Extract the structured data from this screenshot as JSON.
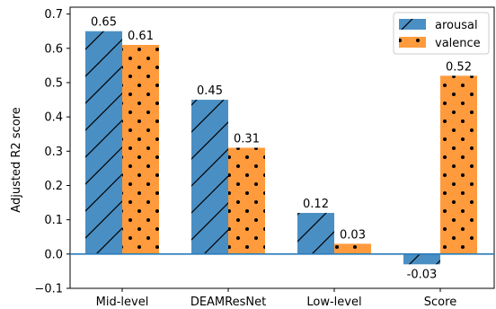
{
  "chart_data": {
    "type": "bar",
    "categories": [
      "Mid-level",
      "DEAMResNet",
      "Low-level",
      "Score"
    ],
    "series": [
      {
        "name": "arousal",
        "values": [
          0.65,
          0.45,
          0.12,
          -0.03
        ],
        "labels": [
          "0.65",
          "0.45",
          "0.12",
          "-0.03"
        ],
        "color": "#4a8fc4",
        "hatch": "diagonal"
      },
      {
        "name": "valence",
        "values": [
          0.61,
          0.31,
          0.03,
          0.52
        ],
        "labels": [
          "0.61",
          "0.31",
          "0.03",
          "0.52"
        ],
        "color": "#ff9b3d",
        "hatch": "dots"
      }
    ],
    "ylabel": "Adjusted R2 score",
    "xlabel": "",
    "ylim": [
      -0.1,
      0.72
    ],
    "yticks": [
      -0.1,
      0.0,
      0.1,
      0.2,
      0.3,
      0.4,
      0.5,
      0.6,
      0.7
    ],
    "ytick_labels": [
      "−0.1",
      "0.0",
      "0.1",
      "0.2",
      "0.3",
      "0.4",
      "0.5",
      "0.6",
      "0.7"
    ],
    "zero_line_color": "#2a7ab9",
    "legend": "top-right",
    "grid": false
  }
}
